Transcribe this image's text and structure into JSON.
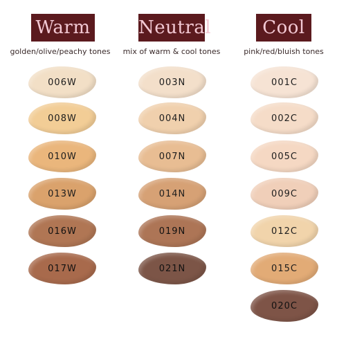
{
  "columns": [
    {
      "key": "warm",
      "title": "Warm",
      "subtitle": "golden/olive/peachy tones",
      "swatches": [
        {
          "label": "006W",
          "color": "#f2dfc6"
        },
        {
          "label": "008W",
          "color": "#f2cd96"
        },
        {
          "label": "010W",
          "color": "#eab67c"
        },
        {
          "label": "013W",
          "color": "#daa26c"
        },
        {
          "label": "016W",
          "color": "#b07654"
        },
        {
          "label": "017W",
          "color": "#a86a4c"
        }
      ]
    },
    {
      "key": "neutral",
      "title": "Neutral",
      "subtitle": "mix of warm & cool tones",
      "swatches": [
        {
          "label": "003N",
          "color": "#f3dfca"
        },
        {
          "label": "004N",
          "color": "#f0d0ad"
        },
        {
          "label": "007N",
          "color": "#e8bd93"
        },
        {
          "label": "014N",
          "color": "#d6a175"
        },
        {
          "label": "019N",
          "color": "#ad7556"
        },
        {
          "label": "021N",
          "color": "#7c5547"
        }
      ]
    },
    {
      "key": "cool",
      "title": "Cool",
      "subtitle": "pink/red/bluish tones",
      "swatches": [
        {
          "label": "001C",
          "color": "#f6e3d4"
        },
        {
          "label": "002C",
          "color": "#f5dcc8"
        },
        {
          "label": "005C",
          "color": "#f5d8c3"
        },
        {
          "label": "009C",
          "color": "#f0cfb9"
        },
        {
          "label": "012C",
          "color": "#f1d4ab"
        },
        {
          "label": "015C",
          "color": "#e2ab76"
        },
        {
          "label": "020C",
          "color": "#7e5447"
        }
      ]
    }
  ],
  "colors": {
    "header_bg": "#5b1a1e",
    "header_text": "#f3c9d4"
  }
}
